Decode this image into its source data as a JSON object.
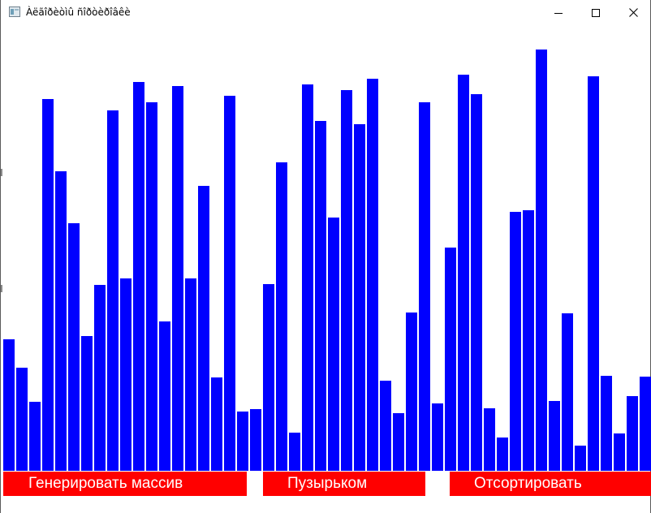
{
  "window": {
    "title": "Àëãîðèòìû ñîðòèðîâêè",
    "app_icon": "window-app-icon",
    "controls": {
      "minimize_icon": "minimize-icon",
      "maximize_icon": "maximize-icon",
      "close_icon": "close-icon"
    }
  },
  "array": {
    "bar_color": "#0000ff",
    "max_value": 600,
    "values": [
      162,
      127,
      85,
      458,
      369,
      305,
      166,
      229,
      444,
      237,
      479,
      454,
      184,
      474,
      237,
      351,
      115,
      462,
      73,
      76,
      230,
      380,
      47,
      476,
      431,
      312,
      469,
      427,
      483,
      111,
      71,
      195,
      454,
      83,
      275,
      488,
      464,
      77,
      41,
      319,
      321,
      519,
      86,
      194,
      31,
      486,
      117,
      46,
      92,
      116
    ]
  },
  "buttons": {
    "color": "#ff0000",
    "text_color": "#ffffff",
    "generate_label": "Генерировать массив",
    "bubble_label": "Пузырьком",
    "sort_label": "Отсортировать"
  }
}
